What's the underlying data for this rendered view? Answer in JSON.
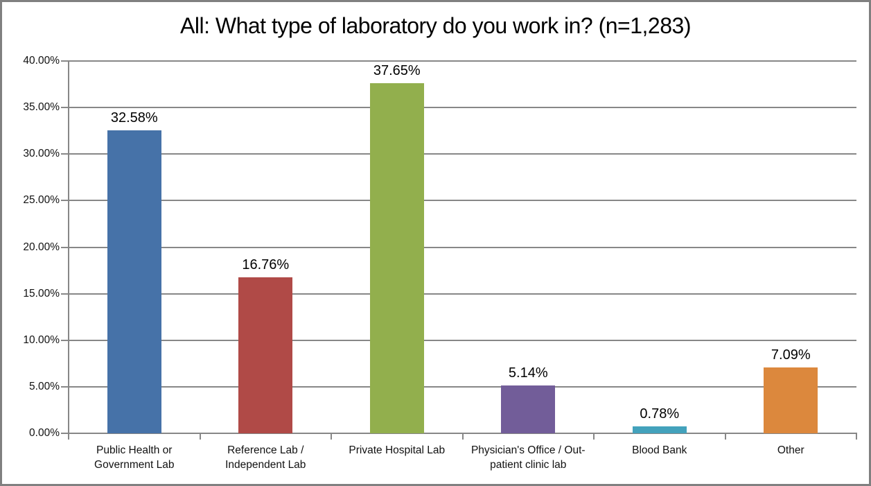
{
  "chart_data": {
    "type": "bar",
    "title": "All: What type of laboratory do you work in? (n=1,283)",
    "categories": [
      "Public Health or Government Lab",
      "Reference Lab / Independent Lab",
      "Private Hospital Lab",
      "Physician's Office / Out-patient clinic lab",
      "Blood Bank",
      "Other"
    ],
    "values": [
      32.58,
      16.76,
      37.65,
      5.14,
      0.78,
      7.09
    ],
    "data_labels": [
      "32.58%",
      "16.76%",
      "37.65%",
      "5.14%",
      "0.78%",
      "7.09%"
    ],
    "bar_colors": [
      "#4672A8",
      "#B04A47",
      "#92AF4D",
      "#725D99",
      "#43A2BC",
      "#DC883D"
    ],
    "xlabel": "",
    "ylabel": "",
    "ylim": [
      0,
      40
    ],
    "ytick_step": 5,
    "ytick_labels": [
      "0.00%",
      "5.00%",
      "10.00%",
      "15.00%",
      "20.00%",
      "25.00%",
      "30.00%",
      "35.00%",
      "40.00%"
    ],
    "grid": true,
    "legend": "none"
  },
  "colors": {
    "gridline": "#878787",
    "axis": "#878787",
    "frame_border": "#808080",
    "background": "#FFFFFF",
    "text": "#000000"
  }
}
